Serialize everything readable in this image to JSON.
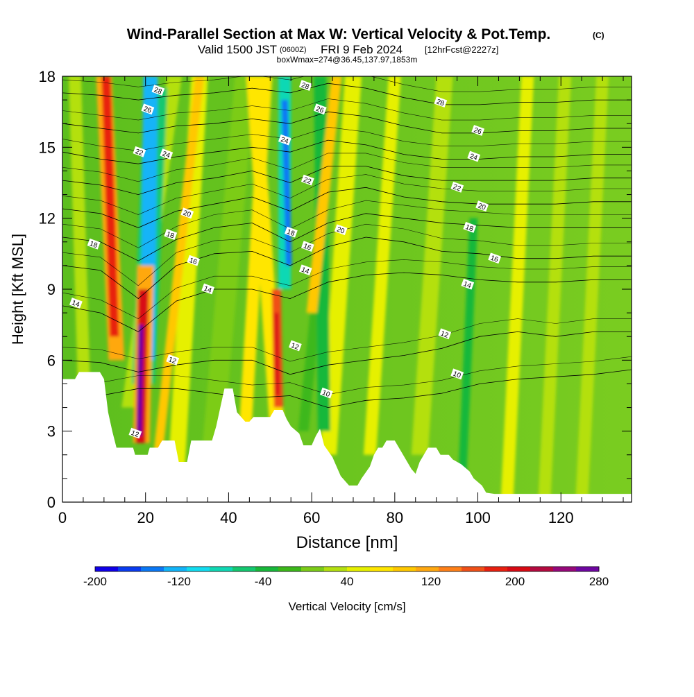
{
  "header": {
    "title": "Wind-Parallel Section at Max W: Vertical Velocity & Pot.Temp.",
    "title_units": "(C)",
    "subtitle_valid": "Valid 1500 JST",
    "subtitle_utc": "(0600Z)",
    "subtitle_date": "FRI 9 Feb 2024",
    "subtitle_fcst": "[12hrFcst@2227z]",
    "subtitle_box": "boxWmax=274@36.45,137.97,1853m"
  },
  "chart_data": {
    "type": "heatmap",
    "xlabel": "Distance [nm]",
    "ylabel": "Height [Kft MSL]",
    "xlim": [
      0,
      137
    ],
    "ylim": [
      0,
      18
    ],
    "x_ticks": [
      0,
      20,
      40,
      60,
      80,
      100,
      120
    ],
    "y_ticks": [
      0,
      3,
      6,
      9,
      12,
      15,
      18
    ],
    "colorbar": {
      "label": "Vertical Velocity [cm/s]",
      "range": [
        -200,
        280
      ],
      "tick_values": [
        -200,
        -120,
        -40,
        40,
        120,
        200,
        280
      ],
      "colors": [
        "#1000e8",
        "#0a3cf0",
        "#0a78f5",
        "#12b4f8",
        "#12dcf0",
        "#10d8b4",
        "#14c870",
        "#18b83a",
        "#3cb81a",
        "#7ccc18",
        "#b4e010",
        "#e6f000",
        "#ffe600",
        "#ffc800",
        "#ffa810",
        "#ff8018",
        "#f05018",
        "#e82010",
        "#d80a14",
        "#b40a40",
        "#96087a",
        "#6e06a0"
      ]
    },
    "w_field": [
      {
        "x": 10.5,
        "z": 12.0,
        "value": 160
      },
      {
        "x": 18.5,
        "z": 5.0,
        "value": 274
      },
      {
        "x": 19.0,
        "z": 8.0,
        "value": 200
      },
      {
        "x": 22.0,
        "z": 13.0,
        "value": -150
      },
      {
        "x": 20.0,
        "z": 17.0,
        "value": -140
      },
      {
        "x": 51.5,
        "z": 6.5,
        "value": 200
      },
      {
        "x": 54.0,
        "z": 13.0,
        "value": -130
      },
      {
        "x": 62.0,
        "z": 10.0,
        "value": -60
      },
      {
        "x": 46.0,
        "z": 14.0,
        "value": 60
      },
      {
        "x": 67.0,
        "z": 13.0,
        "value": 60
      }
    ],
    "terrain": [
      [
        0,
        5.2
      ],
      [
        3,
        5.2
      ],
      [
        4,
        5.5
      ],
      [
        9,
        5.5
      ],
      [
        10,
        5.2
      ],
      [
        11,
        3.8
      ],
      [
        12,
        3.0
      ],
      [
        13,
        2.3
      ],
      [
        17,
        2.3
      ],
      [
        17.5,
        2.0
      ],
      [
        20.5,
        2.0
      ],
      [
        21,
        2.3
      ],
      [
        23,
        2.3
      ],
      [
        24,
        2.6
      ],
      [
        27,
        2.6
      ],
      [
        28,
        1.7
      ],
      [
        30,
        1.7
      ],
      [
        31,
        2.6
      ],
      [
        36,
        2.6
      ],
      [
        37,
        3.2
      ],
      [
        38,
        4.0
      ],
      [
        39,
        4.8
      ],
      [
        41,
        4.8
      ],
      [
        42,
        3.8
      ],
      [
        44,
        3.4
      ],
      [
        45,
        3.4
      ],
      [
        46,
        3.6
      ],
      [
        50,
        3.6
      ],
      [
        51,
        3.9
      ],
      [
        53,
        3.9
      ],
      [
        54,
        3.5
      ],
      [
        55,
        3.2
      ],
      [
        57,
        2.9
      ],
      [
        58,
        2.4
      ],
      [
        60,
        2.4
      ],
      [
        61,
        2.8
      ],
      [
        62,
        3.1
      ],
      [
        63,
        2.4
      ],
      [
        65,
        1.9
      ],
      [
        67,
        1.1
      ],
      [
        69,
        0.7
      ],
      [
        71,
        0.7
      ],
      [
        72,
        1.0
      ],
      [
        74,
        1.5
      ],
      [
        75,
        2.0
      ],
      [
        76,
        2.3
      ],
      [
        77,
        2.3
      ],
      [
        78,
        2.6
      ],
      [
        80,
        2.6
      ],
      [
        81,
        2.3
      ],
      [
        82,
        2.0
      ],
      [
        83,
        1.7
      ],
      [
        84,
        1.4
      ],
      [
        85,
        1.2
      ],
      [
        86,
        1.7
      ],
      [
        87,
        2.0
      ],
      [
        88,
        2.3
      ],
      [
        90,
        2.3
      ],
      [
        91,
        2.0
      ],
      [
        93,
        2.0
      ],
      [
        94,
        1.8
      ],
      [
        96,
        1.6
      ],
      [
        98,
        1.3
      ],
      [
        99,
        1.0
      ],
      [
        101,
        0.7
      ],
      [
        102,
        0.4
      ],
      [
        104,
        0.35
      ],
      [
        137,
        0.35
      ]
    ],
    "isentropes": {
      "unit": "C",
      "levels": [
        {
          "label": "10",
          "heights": [
            4.5,
            4.5,
            4.8,
            4.8,
            4.6,
            4.4,
            4.5,
            4.0,
            4.3,
            4.4,
            4.6,
            5.0,
            5.2,
            5.3,
            5.4,
            5.6
          ]
        },
        {
          "label": "12",
          "heights": [
            6.0,
            5.9,
            5.5,
            5.8,
            6.0,
            6.0,
            5.4,
            5.8,
            6.0,
            6.2,
            6.5,
            7.0,
            7.2,
            7.0,
            7.2,
            7.2
          ]
        },
        {
          "label": "14",
          "heights": [
            8.3,
            8.0,
            7.2,
            8.5,
            9.0,
            9.0,
            8.6,
            9.3,
            9.6,
            9.7,
            9.6,
            9.4,
            9.3,
            9.3,
            9.4,
            9.4
          ]
        },
        {
          "label": "16",
          "heights": [
            10.0,
            9.8,
            8.6,
            10.0,
            10.5,
            10.6,
            10.0,
            10.8,
            11.2,
            11.0,
            10.6,
            10.5,
            10.3,
            10.3,
            10.4,
            10.4
          ]
        },
        {
          "label": "18",
          "heights": [
            11.2,
            11.0,
            10.2,
            11.1,
            11.6,
            11.8,
            11.0,
            11.8,
            12.2,
            12.0,
            11.8,
            11.7,
            11.6,
            11.6,
            11.6,
            11.6
          ]
        },
        {
          "label": "20",
          "heights": [
            12.4,
            12.2,
            11.6,
            12.3,
            12.6,
            12.9,
            12.3,
            13.1,
            13.3,
            12.9,
            12.7,
            12.6,
            12.6,
            12.6,
            12.7,
            12.7
          ]
        },
        {
          "label": "22",
          "heights": [
            13.6,
            13.4,
            13.0,
            13.5,
            13.7,
            14.0,
            13.5,
            14.2,
            14.2,
            13.8,
            13.6,
            13.6,
            13.6,
            13.6,
            13.7,
            13.7
          ]
        },
        {
          "label": "24",
          "heights": [
            14.8,
            14.5,
            14.3,
            14.6,
            14.8,
            15.0,
            14.8,
            15.3,
            15.1,
            14.7,
            14.5,
            14.5,
            14.6,
            14.6,
            14.7,
            14.7
          ]
        },
        {
          "label": "26",
          "heights": [
            16.0,
            15.8,
            15.6,
            15.9,
            16.0,
            16.2,
            16.0,
            16.5,
            16.3,
            15.9,
            15.6,
            15.6,
            15.7,
            15.7,
            15.8,
            15.8
          ]
        },
        {
          "label": "28",
          "heights": [
            17.3,
            17.2,
            17.0,
            17.2,
            17.3,
            17.5,
            17.3,
            17.7,
            17.5,
            17.1,
            16.8,
            16.8,
            16.9,
            16.9,
            17.0,
            17.0
          ]
        }
      ]
    },
    "contour_labels": [
      {
        "text": "28",
        "x": 23,
        "z": 17.4
      },
      {
        "text": "26",
        "x": 20.5,
        "z": 16.6
      },
      {
        "text": "22",
        "x": 18.5,
        "z": 14.8
      },
      {
        "text": "24",
        "x": 25,
        "z": 14.7
      },
      {
        "text": "20",
        "x": 30,
        "z": 12.2
      },
      {
        "text": "18",
        "x": 26,
        "z": 11.3
      },
      {
        "text": "18",
        "x": 7.5,
        "z": 10.9
      },
      {
        "text": "16",
        "x": 31.5,
        "z": 10.2
      },
      {
        "text": "14",
        "x": 3.2,
        "z": 8.4
      },
      {
        "text": "14",
        "x": 35,
        "z": 9.0
      },
      {
        "text": "12",
        "x": 26.5,
        "z": 6.0
      },
      {
        "text": "12",
        "x": 17.5,
        "z": 2.9
      },
      {
        "text": "28",
        "x": 58.5,
        "z": 17.6
      },
      {
        "text": "26",
        "x": 62,
        "z": 16.6
      },
      {
        "text": "24",
        "x": 53.5,
        "z": 15.3
      },
      {
        "text": "22",
        "x": 59,
        "z": 13.6
      },
      {
        "text": "18",
        "x": 55,
        "z": 11.4
      },
      {
        "text": "16",
        "x": 59,
        "z": 10.8
      },
      {
        "text": "14",
        "x": 58.5,
        "z": 9.8
      },
      {
        "text": "20",
        "x": 67,
        "z": 11.5
      },
      {
        "text": "12",
        "x": 56,
        "z": 6.6
      },
      {
        "text": "10",
        "x": 63.5,
        "z": 4.6
      },
      {
        "text": "28",
        "x": 91,
        "z": 16.9
      },
      {
        "text": "26",
        "x": 100,
        "z": 15.7
      },
      {
        "text": "24",
        "x": 99,
        "z": 14.6
      },
      {
        "text": "22",
        "x": 95,
        "z": 13.3
      },
      {
        "text": "20",
        "x": 101,
        "z": 12.5
      },
      {
        "text": "18",
        "x": 98,
        "z": 11.6
      },
      {
        "text": "16",
        "x": 104,
        "z": 10.3
      },
      {
        "text": "14",
        "x": 97.5,
        "z": 9.2
      },
      {
        "text": "12",
        "x": 92,
        "z": 7.1
      },
      {
        "text": "10",
        "x": 95,
        "z": 5.4
      }
    ]
  }
}
